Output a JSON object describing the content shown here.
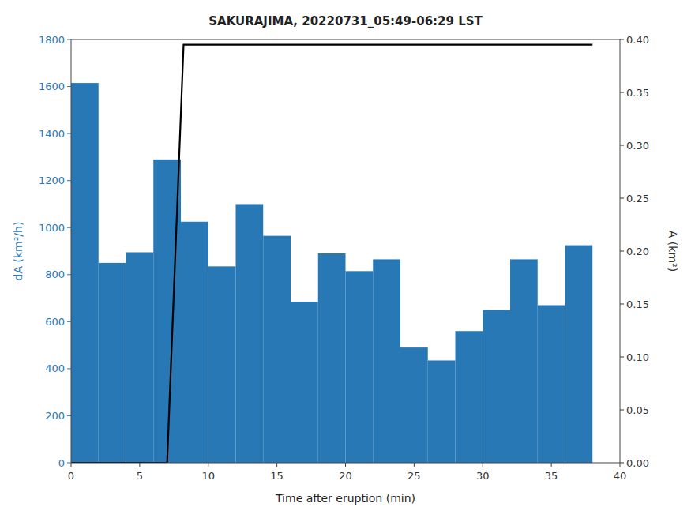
{
  "chart_data": {
    "type": "bar",
    "title": "SAKURAJIMA, 20220731_05:49-06:29 LST",
    "xlabel": "Time after eruption (min)",
    "ylabel": "dA (km²/h)",
    "y2label": "A (km²)",
    "xlim": [
      0,
      40
    ],
    "xticks": [
      0,
      5,
      10,
      15,
      20,
      25,
      30,
      35,
      40
    ],
    "ylim": [
      0,
      1800
    ],
    "yticks": [
      0,
      200,
      400,
      600,
      800,
      1000,
      1200,
      1400,
      1600,
      1800
    ],
    "y2lim": [
      0,
      0.4
    ],
    "y2ticks": [
      {
        "value": 0,
        "label": "0.00"
      },
      0.05,
      {
        "value": 0.1,
        "label": "0.10"
      },
      0.15,
      {
        "value": 0.2,
        "label": "0.20"
      },
      0.25,
      {
        "value": 0.3,
        "label": "0.30"
      },
      0.35,
      {
        "value": 0.4,
        "label": "0.40"
      }
    ],
    "grid": false,
    "series": [
      {
        "type": "bar",
        "color": "#2878b5",
        "x": [
          1,
          3,
          5,
          7,
          9,
          11,
          13,
          15,
          17,
          19,
          21,
          23,
          25,
          27,
          29,
          31,
          33,
          35,
          37
        ],
        "values": [
          1615,
          850,
          895,
          1290,
          1025,
          835,
          1100,
          965,
          685,
          890,
          815,
          865,
          490,
          435,
          560,
          650,
          865,
          670,
          925
        ]
      },
      {
        "type": "line",
        "color": "black",
        "axis": "y2",
        "x": [
          0,
          7.0,
          8.2,
          38
        ],
        "values": [
          0,
          0,
          0.395,
          0.395
        ]
      }
    ]
  }
}
